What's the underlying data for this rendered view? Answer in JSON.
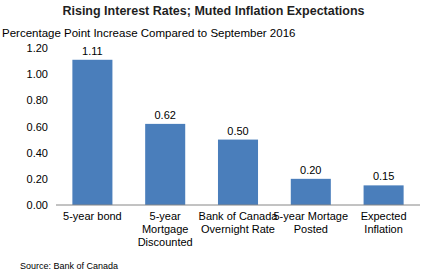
{
  "chart_data": {
    "type": "bar",
    "title": "Rising Interest Rates; Muted Inflation Expectations",
    "subtitle": "Percentage Point Increase Compared to September 2016",
    "source": "Source: Bank of Canada",
    "categories": [
      "5-year bond",
      "5-year Mortgage Discounted",
      "Bank of Canada Overnight Rate",
      "5-year Mortage Posted",
      "Expected Inflation"
    ],
    "values": [
      1.11,
      0.62,
      0.5,
      0.2,
      0.15
    ],
    "value_labels": [
      "1.11",
      "0.62",
      "0.50",
      "0.20",
      "0.15"
    ],
    "data_labels": true,
    "color": "#4a7ebb",
    "ylim": [
      0,
      1.2
    ],
    "yticks": [
      {
        "value": 0,
        "label": "0.00"
      },
      {
        "value": 0.2,
        "label": "0.20"
      },
      {
        "value": 0.4,
        "label": "0.40"
      },
      {
        "value": 0.6,
        "label": "0.60"
      },
      {
        "value": 0.8,
        "label": "0.80"
      },
      {
        "value": 1.0,
        "label": "1.00"
      },
      {
        "value": 1.2,
        "label": "1.20"
      }
    ],
    "grid": false
  }
}
